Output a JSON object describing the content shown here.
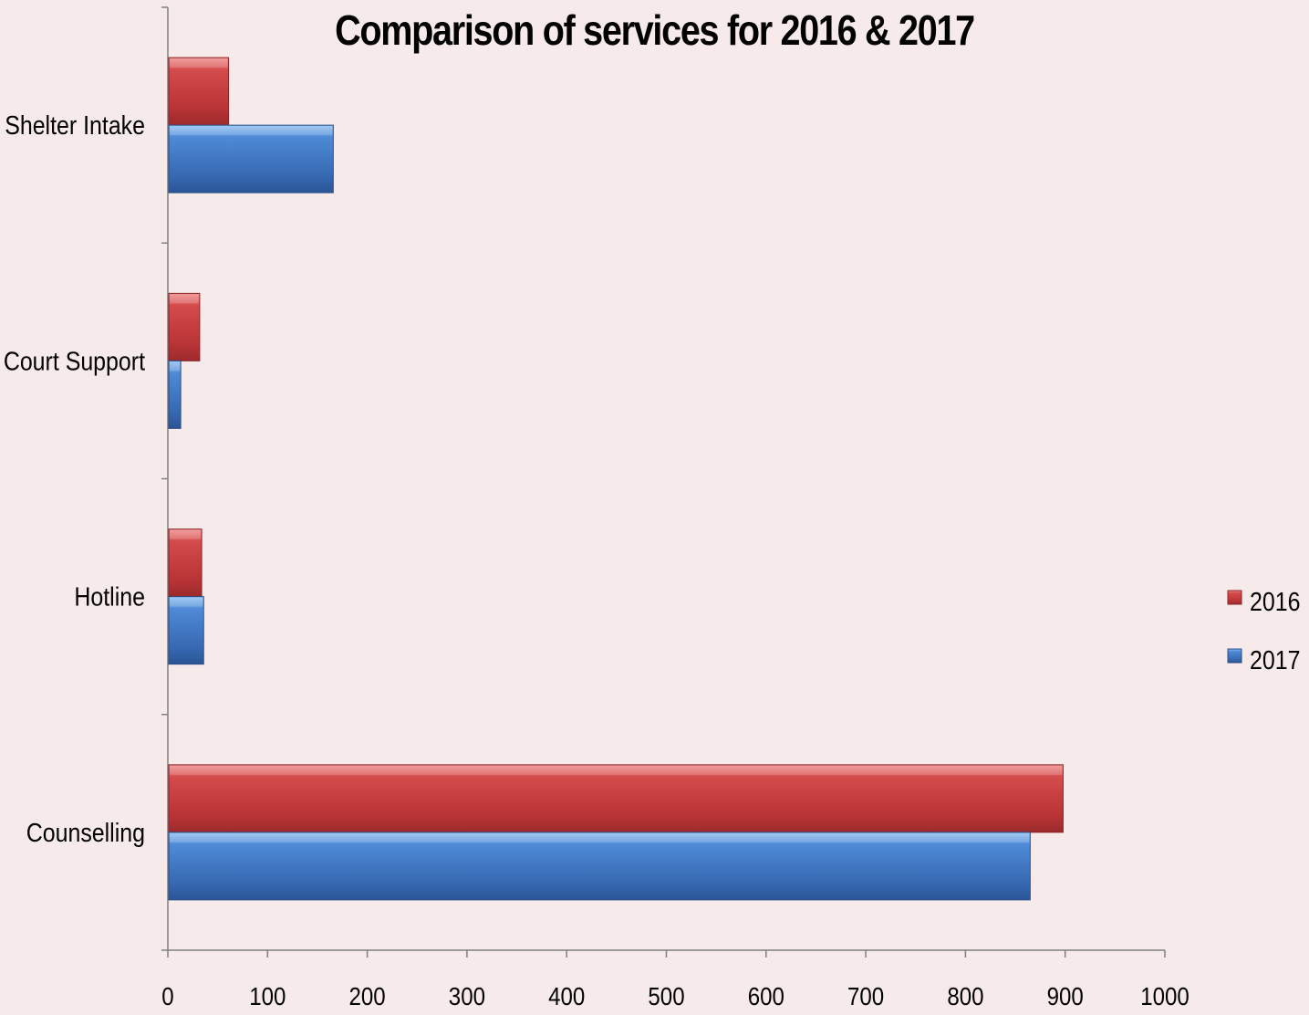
{
  "chart_data": {
    "type": "bar",
    "orientation": "horizontal",
    "title": "Comparison of services for 2016 & 2017",
    "categories": [
      "Counselling",
      "Hotline",
      "Court Support",
      "Shelter Intake"
    ],
    "series": [
      {
        "name": "2016",
        "values": [
          897,
          33,
          31,
          60
        ],
        "color": "#c0393b"
      },
      {
        "name": "2017",
        "values": [
          864,
          35,
          12,
          165
        ],
        "color": "#3a73c0"
      }
    ],
    "x_ticks": [
      "0",
      "100",
      "200",
      "300",
      "400",
      "500",
      "600",
      "700",
      "800",
      "900",
      "1000"
    ],
    "xlim": [
      0,
      1000
    ],
    "grid": false,
    "legend_position": "right",
    "background": "#f6eaea"
  }
}
